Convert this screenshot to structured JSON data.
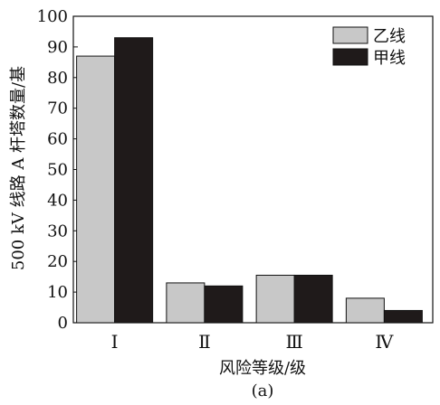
{
  "chart_data": {
    "type": "bar",
    "ylabel": "500 kV 线路 A 杆塔数量/基",
    "xlabel": "风险等级/级",
    "caption": "(a)",
    "ylim": [
      0,
      100
    ],
    "yticks": [
      0,
      10,
      20,
      30,
      40,
      50,
      60,
      70,
      80,
      90,
      100
    ],
    "categories": [
      "Ⅰ",
      "Ⅱ",
      "Ⅲ",
      "Ⅳ"
    ],
    "series": [
      {
        "name": "乙线",
        "color": "#c8c8c8",
        "values": [
          87,
          13,
          15.5,
          8
        ]
      },
      {
        "name": "甲线",
        "color": "#1f1a1a",
        "values": [
          93,
          12,
          15.5,
          4
        ]
      }
    ],
    "legend": "top-right",
    "grid": false
  }
}
